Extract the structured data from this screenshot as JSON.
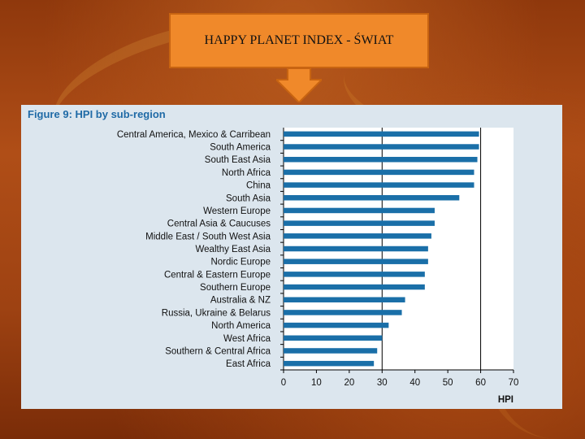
{
  "slide": {
    "title": "HAPPY PLANET INDEX - ŚWIAT"
  },
  "figure": {
    "title": "Figure 9: HPI by sub-region"
  },
  "colors": {
    "bar": "#1a6fa8",
    "box": "#f0892a",
    "figure_title": "#1f6aa6"
  },
  "chart_data": {
    "type": "bar",
    "orientation": "horizontal",
    "title": "Figure 9: HPI by sub-region",
    "xlabel": "HPI",
    "ylabel": "",
    "xlim": [
      0,
      70
    ],
    "x_ticks": [
      0,
      10,
      20,
      30,
      40,
      50,
      60,
      70
    ],
    "grid": "vertical at 30 and 60",
    "categories": [
      "Central America, Mexico & Carribean",
      "South America",
      "South East Asia",
      "North Africa",
      "China",
      "South Asia",
      "Western Europe",
      "Central Asia & Caucuses",
      "Middle East / South West Asia",
      "Wealthy East Asia",
      "Nordic Europe",
      "Central & Eastern Europe",
      "Southern Europe",
      "Australia & NZ",
      "Russia, Ukraine & Belarus",
      "North America",
      "West Africa",
      "Southern & Central Africa",
      "East Africa"
    ],
    "values": [
      59.5,
      59.5,
      59,
      58,
      58,
      53.5,
      46,
      46,
      45,
      44,
      44,
      43,
      43,
      37,
      36,
      32,
      30,
      28.5,
      27.5
    ]
  }
}
